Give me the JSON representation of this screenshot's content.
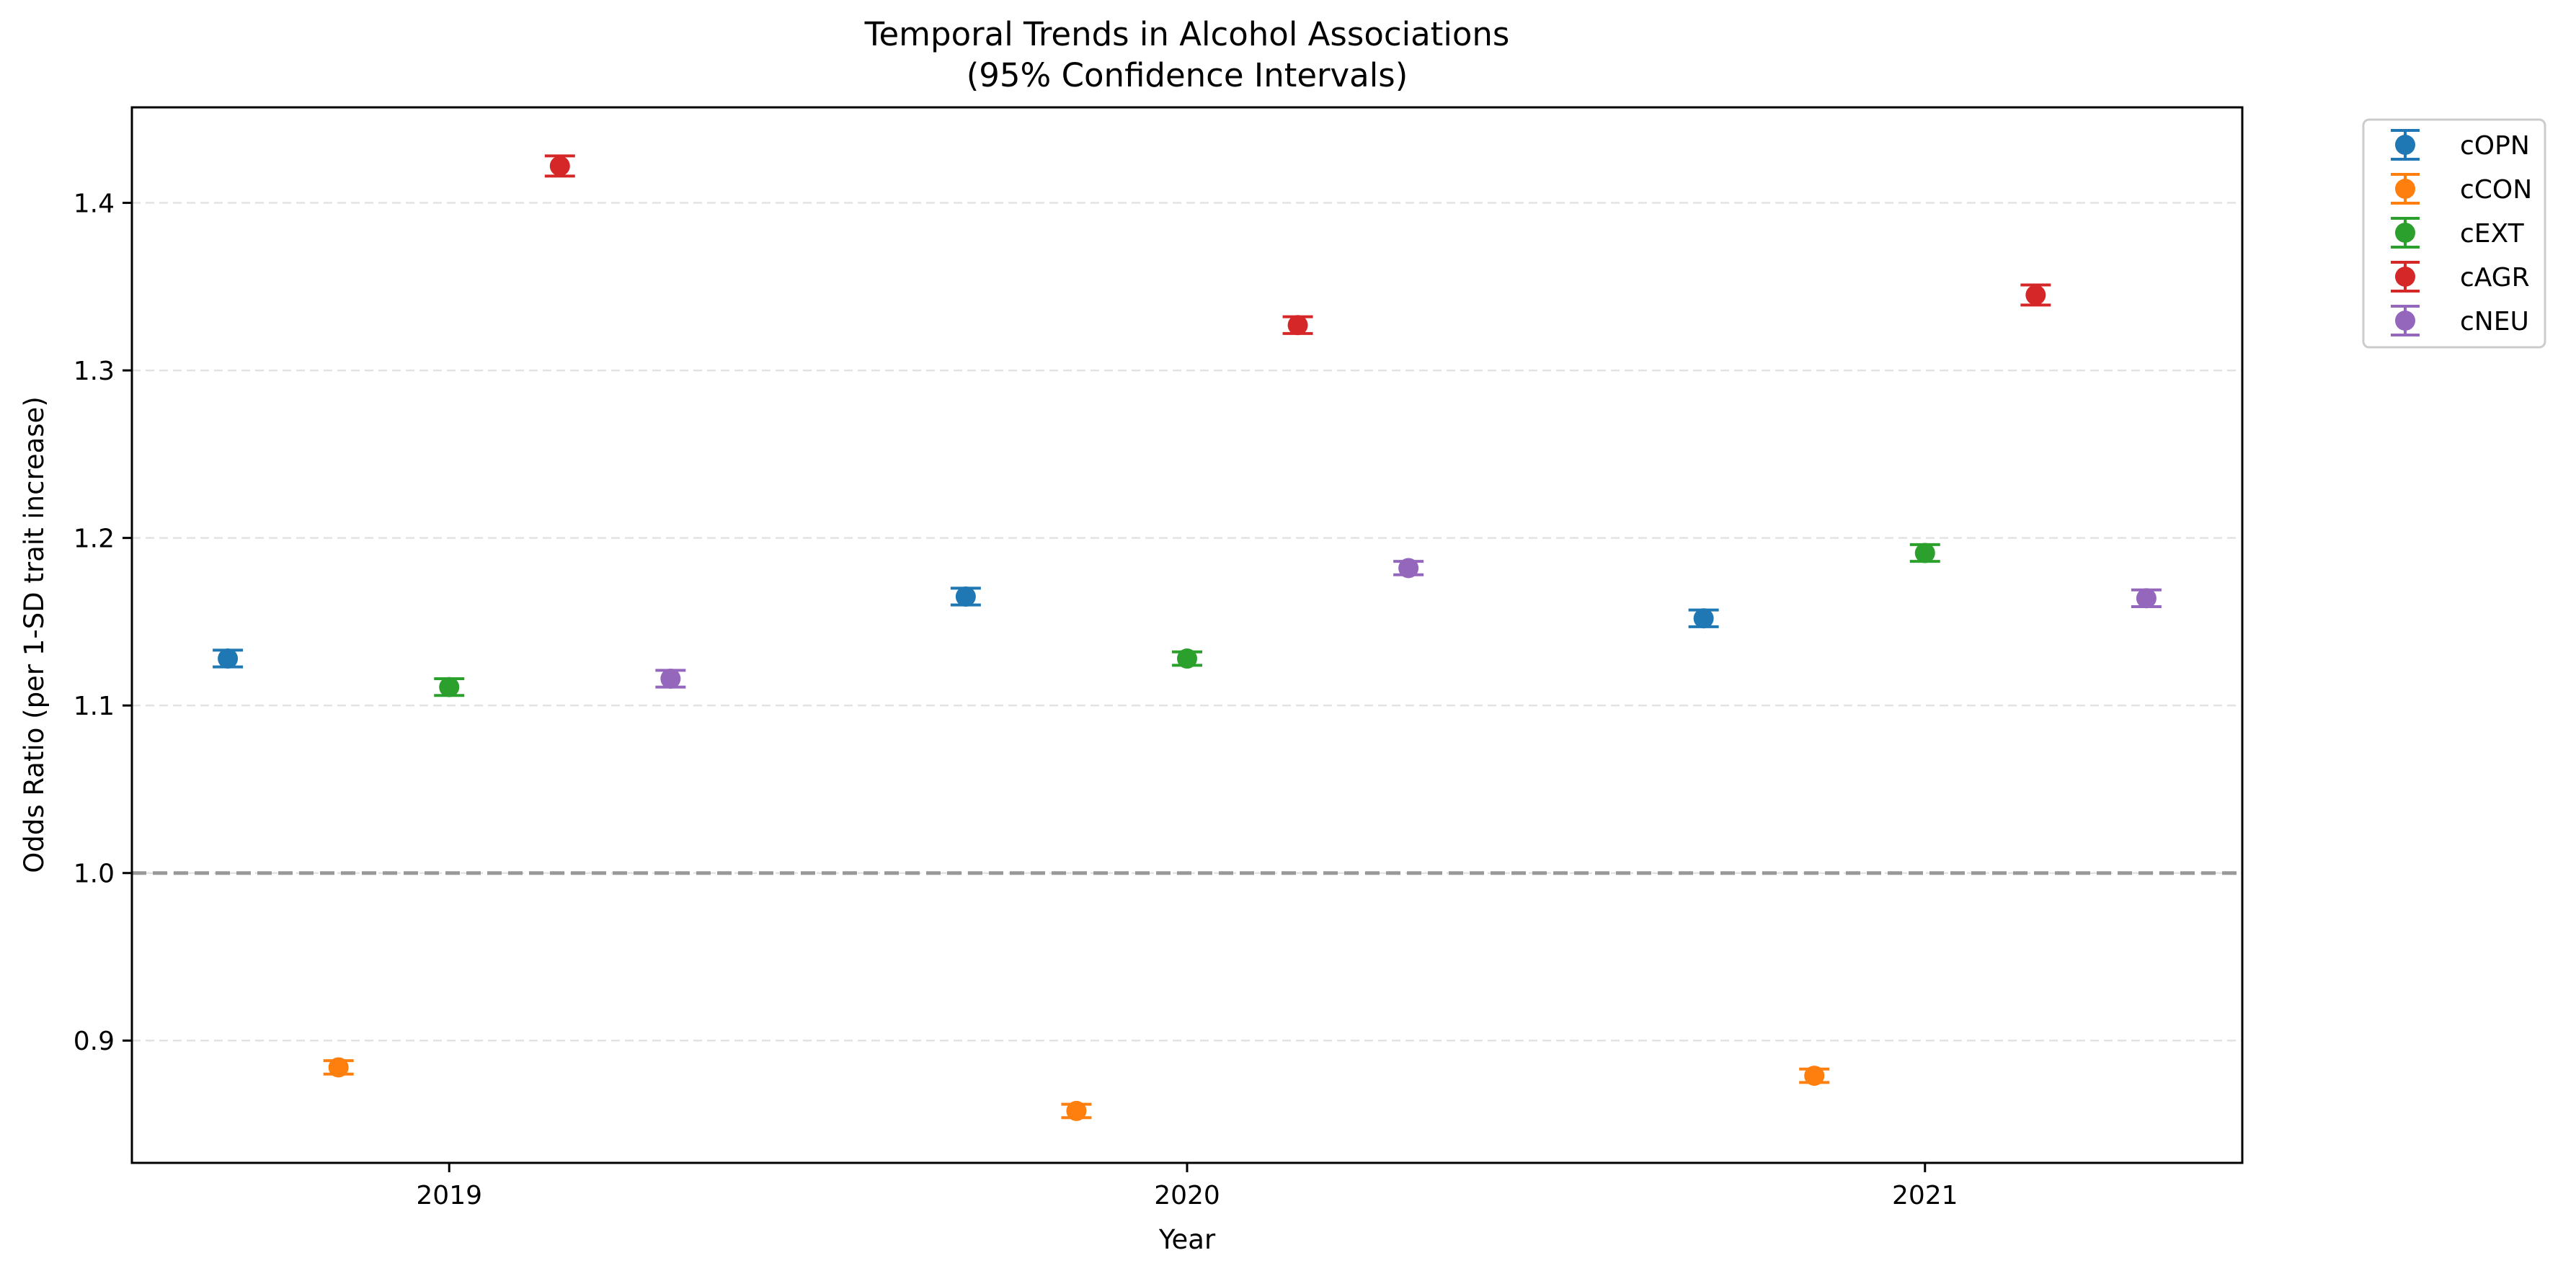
{
  "chart_data": {
    "type": "scatter",
    "title": "Temporal Trends in Alcohol Associations",
    "subtitle": "(95% Confidence Intervals)",
    "xlabel": "Year",
    "ylabel": "Odds Ratio (per 1-SD trait increase)",
    "categories": [
      "2019",
      "2020",
      "2021"
    ],
    "ylim": [
      0.827,
      1.457
    ],
    "yticks": [
      "0.9",
      "1.0",
      "1.1",
      "1.2",
      "1.3",
      "1.4"
    ],
    "grid": "horizontal dashed",
    "reference_line": 1.0,
    "legend_position": "outside top-right",
    "series": [
      {
        "name": "cOPN",
        "color": "#1f77b4",
        "offset": -0.3,
        "values": [
          1.128,
          1.165,
          1.152
        ],
        "ci_low": [
          1.123,
          1.16,
          1.147
        ],
        "ci_high": [
          1.133,
          1.17,
          1.157
        ]
      },
      {
        "name": "cCON",
        "color": "#ff7f0e",
        "offset": -0.15,
        "values": [
          0.884,
          0.858,
          0.879
        ],
        "ci_low": [
          0.88,
          0.854,
          0.875
        ],
        "ci_high": [
          0.888,
          0.862,
          0.883
        ]
      },
      {
        "name": "cEXT",
        "color": "#2ca02c",
        "offset": 0.0,
        "values": [
          1.111,
          1.128,
          1.191
        ],
        "ci_low": [
          1.106,
          1.124,
          1.186
        ],
        "ci_high": [
          1.116,
          1.132,
          1.196
        ]
      },
      {
        "name": "cAGR",
        "color": "#d62728",
        "offset": 0.15,
        "values": [
          1.422,
          1.327,
          1.345
        ],
        "ci_low": [
          1.416,
          1.322,
          1.339
        ],
        "ci_high": [
          1.428,
          1.332,
          1.351
        ]
      },
      {
        "name": "cNEU",
        "color": "#9467bd",
        "offset": 0.3,
        "values": [
          1.116,
          1.182,
          1.164
        ],
        "ci_low": [
          1.111,
          1.178,
          1.159
        ],
        "ci_high": [
          1.121,
          1.186,
          1.169
        ]
      }
    ]
  }
}
